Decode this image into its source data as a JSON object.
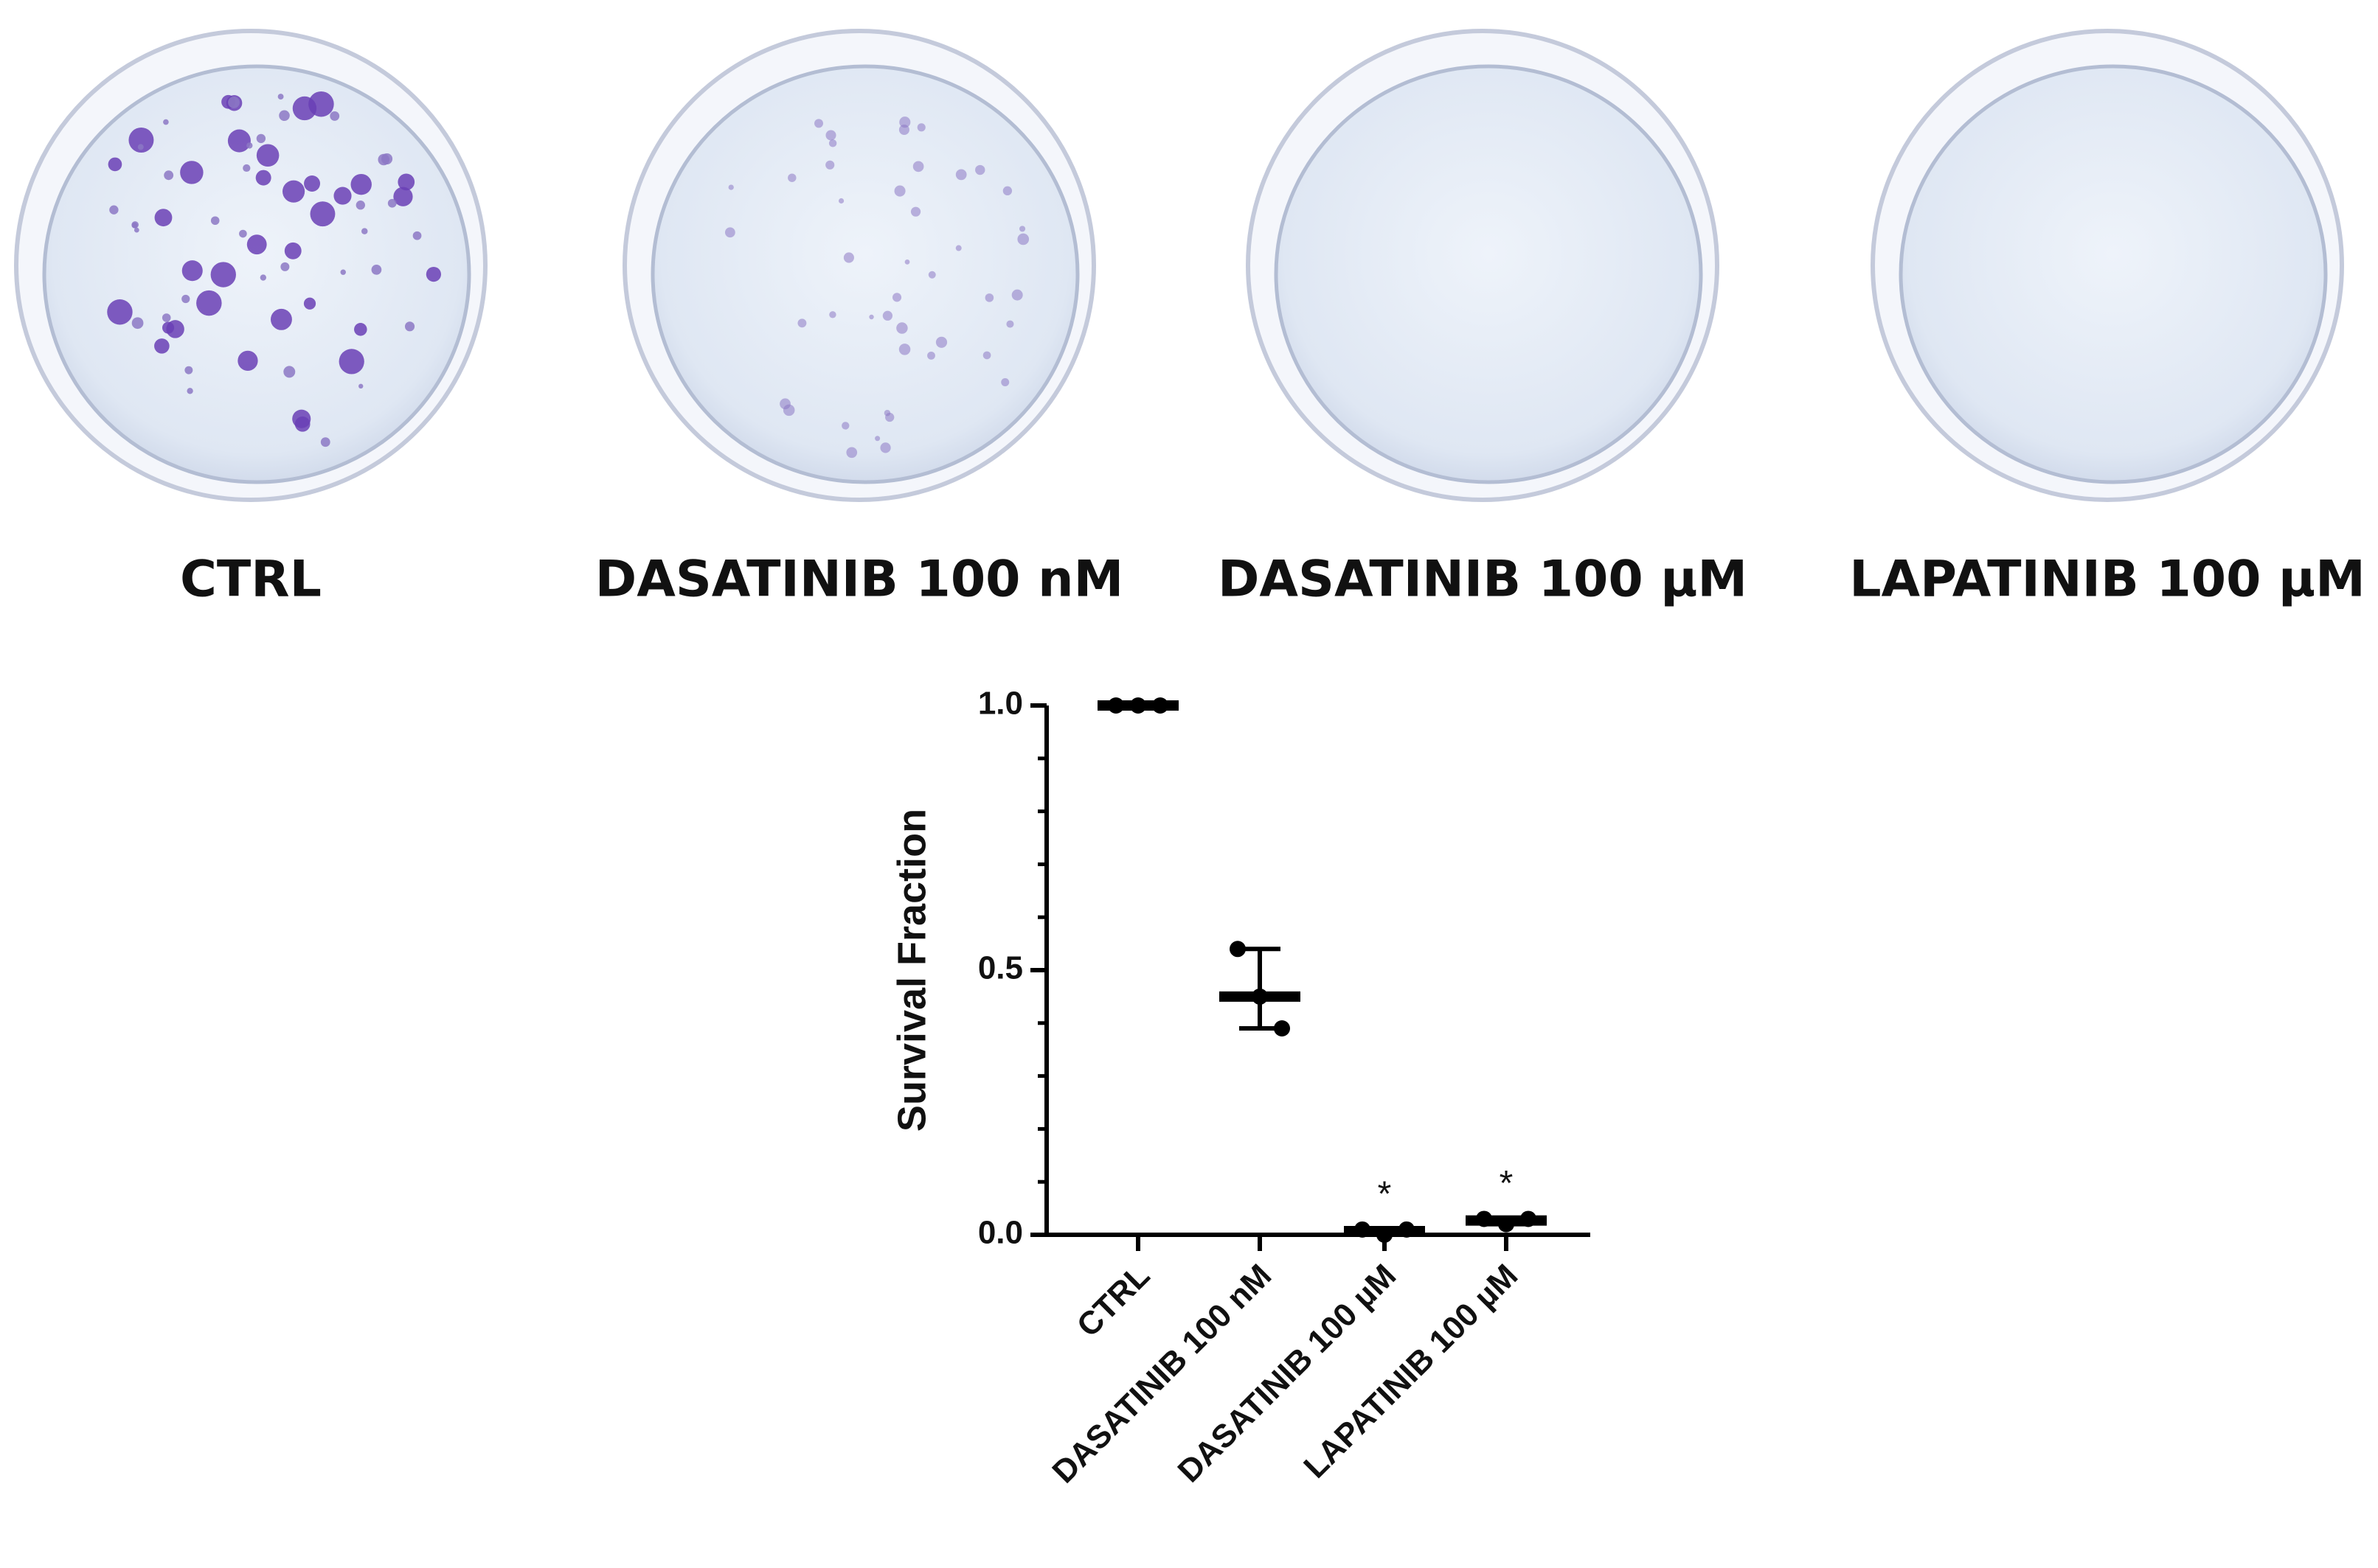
{
  "photo_labels": [
    "CTRL",
    "DASATINIB 100 nM",
    "DASATINIB 100 µM",
    "LAPATINIB 100 µM"
  ],
  "chart_data": {
    "type": "dot",
    "y_label": "Survival Fraction",
    "categories": [
      "CTRL",
      "DASATINIB 100 nM",
      "DASATINIB 100 µM",
      "LAPATINIB 100 µM"
    ],
    "values": [
      [
        1,
        1,
        1
      ],
      [
        0.54,
        0.45,
        0.39
      ],
      [
        0.01,
        0,
        0.01
      ],
      [
        0.03,
        0.02,
        0.03
      ]
    ],
    "means": [
      1,
      0.45,
      0.007,
      0.027
    ],
    "annotations": [
      null,
      null,
      "*",
      "*"
    ],
    "color": "#000000",
    "ylim": [
      0,
      1
    ],
    "yticks": [
      {
        "value": 0,
        "label": "0.0"
      },
      {
        "value": 0.5,
        "label": "0.5"
      },
      {
        "value": 1,
        "label": "1.0"
      }
    ],
    "yminorticks": [
      0.1,
      0.2,
      0.3,
      0.4,
      0.6,
      0.7,
      0.8,
      0.9
    ]
  }
}
